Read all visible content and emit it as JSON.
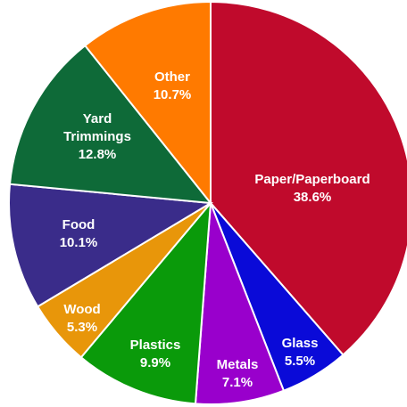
{
  "chart_data": {
    "type": "pie",
    "title": "",
    "slices": [
      {
        "name": "Paper/Paperboard",
        "value": 38.6,
        "label": "38.6%",
        "color": "#C00A2C"
      },
      {
        "name": "Glass",
        "value": 5.5,
        "label": "5.5%",
        "color": "#0A0AD8"
      },
      {
        "name": "Metals",
        "value": 7.1,
        "label": "7.1%",
        "color": "#9900CC"
      },
      {
        "name": "Plastics",
        "value": 9.9,
        "label": "9.9%",
        "color": "#0A9A0A"
      },
      {
        "name": "Wood",
        "value": 5.3,
        "label": "5.3%",
        "color": "#E8960A"
      },
      {
        "name": "Food",
        "value": 10.1,
        "label": "10.1%",
        "color": "#3A2C8A"
      },
      {
        "name": "Yard Trimmings",
        "value": 12.8,
        "label": "12.8%",
        "color": "#0E6A38"
      },
      {
        "name": "Other",
        "value": 10.7,
        "label": "10.7%",
        "color": "#FF7A00"
      }
    ]
  }
}
